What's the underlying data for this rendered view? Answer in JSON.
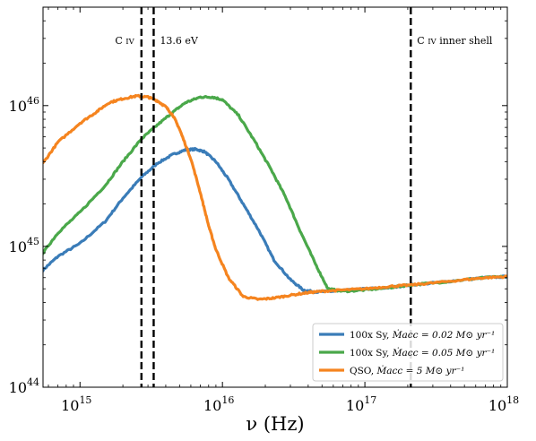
{
  "chart_data": {
    "type": "line",
    "title": "",
    "xlabel": "ν (Hz)",
    "ylabel": "",
    "xscale": "log",
    "yscale": "log",
    "xlim": [
      550000000000000.0,
      1e+18
    ],
    "ylim": [
      1e+44,
      5e+46
    ],
    "grid": false,
    "legend_position": "bottom-right",
    "x_ticks": [
      {
        "value": 1000000000000000.0,
        "label_base": "10",
        "label_exp": "15"
      },
      {
        "value": 1e+16,
        "label_base": "10",
        "label_exp": "16"
      },
      {
        "value": 1e+17,
        "label_base": "10",
        "label_exp": "17"
      },
      {
        "value": 1e+18,
        "label_base": "10",
        "label_exp": "18"
      }
    ],
    "y_ticks": [
      {
        "value": 1e+44,
        "label_base": "10",
        "label_exp": "44"
      },
      {
        "value": 1e+45,
        "label_base": "10",
        "label_exp": "45"
      },
      {
        "value": 1e+46,
        "label_base": "10",
        "label_exp": "46"
      }
    ],
    "vlines": [
      {
        "x": 2700000000000000.0,
        "label": "C iv",
        "style": "dashed"
      },
      {
        "x": 3290000000000000.0,
        "label": "13.6 eV",
        "style": "dashed"
      },
      {
        "x": 2.1e+17,
        "label": "C iv inner shell",
        "style": "dashed"
      }
    ],
    "series": [
      {
        "name": "100x Sy, Ṁ_acc = 0.02 M_⊙ yr⁻¹",
        "legend_prefix": "100x Sy, ",
        "legend_math": "Ṁacc = 0.02 M⊙ yr⁻¹",
        "color": "#3a7cb8",
        "x": [
          550000000000000.0,
          700000000000000.0,
          1000000000000000.0,
          1500000000000000.0,
          2000000000000000.0,
          2700000000000000.0,
          3500000000000000.0,
          4500000000000000.0,
          5500000000000000.0,
          6500000000000000.0,
          7500000000000000.0,
          9000000000000000.0,
          1.1e+16,
          1.4e+16,
          1.8e+16,
          2.3e+16,
          3e+16,
          3.7e+16,
          4.5e+16,
          6e+16,
          8e+16,
          1e+17,
          1.5e+17,
          2e+17,
          3e+17,
          5e+17,
          7e+17,
          1e+18
        ],
        "y": [
          6.8e+44,
          8.5e+44,
          1.05e+45,
          1.5e+45,
          2.2e+45,
          3.1e+45,
          3.9e+45,
          4.5e+45,
          4.85e+45,
          4.9e+45,
          4.7e+45,
          4e+45,
          3e+45,
          2e+45,
          1.3e+45,
          8e+44,
          5.8e+44,
          4.9e+44,
          4.75e+44,
          4.8e+44,
          4.9e+44,
          5e+44,
          5.1e+44,
          5.3e+44,
          5.5e+44,
          5.8e+44,
          6e+44,
          6.1e+44
        ]
      },
      {
        "name": "100x Sy, Ṁ_acc = 0.05 M_⊙ yr⁻¹",
        "legend_prefix": "100x Sy, ",
        "legend_math": "Ṁacc = 0.05 M⊙ yr⁻¹",
        "color": "#4aa84a",
        "x": [
          550000000000000.0,
          700000000000000.0,
          1000000000000000.0,
          1500000000000000.0,
          2000000000000000.0,
          2700000000000000.0,
          3500000000000000.0,
          4500000000000000.0,
          5500000000000000.0,
          7000000000000000.0,
          8500000000000000.0,
          1e+16,
          1.3e+16,
          1.7e+16,
          2.2e+16,
          2.8e+16,
          3.5e+16,
          4.5e+16,
          5.5e+16,
          7e+16,
          1e+17,
          1.5e+17,
          2e+17,
          3e+17,
          5e+17,
          7e+17,
          1e+18
        ],
        "y": [
          9e+44,
          1.25e+45,
          1.75e+45,
          2.7e+45,
          4e+45,
          5.8e+45,
          7.3e+45,
          9e+45,
          1.05e+46,
          1.15e+46,
          1.15e+46,
          1.1e+46,
          8.5e+45,
          5.5e+45,
          3.5e+45,
          2.2e+45,
          1.3e+45,
          7.5e+44,
          5e+44,
          4.8e+44,
          4.9e+44,
          5.1e+44,
          5.3e+44,
          5.5e+44,
          5.8e+44,
          6e+44,
          6.1e+44
        ]
      },
      {
        "name": "QSO, Ṁ_acc = 5 M_⊙ yr⁻¹",
        "legend_prefix": "QSO, ",
        "legend_math": "Ṁacc = 5 M⊙ yr⁻¹",
        "color": "#f5841f",
        "x": [
          550000000000000.0,
          700000000000000.0,
          1000000000000000.0,
          1300000000000000.0,
          1600000000000000.0,
          2000000000000000.0,
          2500000000000000.0,
          3000000000000000.0,
          3500000000000000.0,
          4000000000000000.0,
          4500000000000000.0,
          5000000000000000.0,
          6000000000000000.0,
          7000000000000000.0,
          8000000000000000.0,
          9000000000000000.0,
          1.1e+16,
          1.4e+16,
          1.8e+16,
          2.3e+16,
          3e+16,
          4e+16,
          5e+16,
          7e+16,
          1e+17,
          1.5e+17,
          2e+17,
          3e+17,
          5e+17,
          7e+17,
          1e+18
        ],
        "y": [
          3.9e+45,
          5.5e+45,
          7.5e+45,
          9e+45,
          1.05e+46,
          1.12e+46,
          1.17e+46,
          1.15e+46,
          1.08e+46,
          9.8e+45,
          8.5e+45,
          6.8e+45,
          4.2e+45,
          2.4e+45,
          1.4e+45,
          9.5e+44,
          6e+44,
          4.4e+44,
          4.2e+44,
          4.3e+44,
          4.5e+44,
          4.7e+44,
          4.8e+44,
          4.9e+44,
          5e+44,
          5.2e+44,
          5.3e+44,
          5.5e+44,
          5.8e+44,
          6e+44,
          6.1e+44
        ]
      }
    ]
  }
}
